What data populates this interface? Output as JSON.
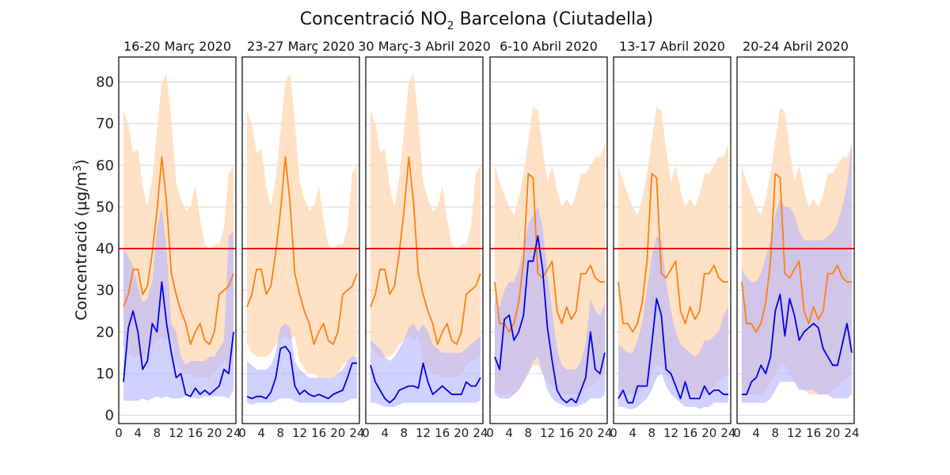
{
  "chart_data": {
    "type": "line",
    "title": "Concentració NO₂ Barcelona (Ciutadella)",
    "title_parts": {
      "pre": "Concentració NO",
      "sub": "2",
      "post": " Barcelona (Ciutadella)"
    },
    "ylabel_parts": {
      "pre": "Concentració (µg/m",
      "sup": "3",
      "post": ")"
    },
    "xticks": [
      0,
      4,
      8,
      12,
      16,
      20,
      24
    ],
    "yticks": [
      0,
      10,
      20,
      30,
      40,
      50,
      60,
      70,
      80
    ],
    "xlim": [
      0,
      24.5
    ],
    "ylim": [
      -2,
      86
    ],
    "grid": "horizontal",
    "threshold": {
      "value": 40,
      "color": "#e00000"
    },
    "colors": {
      "reference": "#ff7f0e",
      "reference_band": "#ffdcbc",
      "current": "#0000e6",
      "current_band": "#b3b3ff"
    },
    "x": [
      1,
      2,
      3,
      4,
      5,
      6,
      7,
      8,
      9,
      10,
      11,
      12,
      13,
      14,
      15,
      16,
      17,
      18,
      19,
      20,
      21,
      22,
      23,
      24
    ],
    "panels": [
      {
        "title": "16-20 Març 2020",
        "orange": [
          26,
          29,
          35,
          35,
          29,
          31,
          39,
          49,
          62,
          51,
          34,
          29,
          25,
          22,
          17,
          20,
          22,
          18,
          17,
          20,
          29,
          30,
          31,
          34
        ],
        "orange_lo": [
          17,
          15,
          14,
          14,
          14,
          15,
          17,
          18,
          19,
          18,
          19,
          13,
          11,
          10,
          10,
          9,
          9,
          9,
          9,
          10,
          12,
          13,
          13,
          15
        ],
        "orange_hi": [
          73,
          70,
          63,
          64,
          55,
          50,
          57,
          68,
          80,
          82,
          71,
          56,
          52,
          49,
          50,
          55,
          47,
          41,
          40,
          41,
          41,
          45,
          58,
          60
        ],
        "blue": [
          8,
          21,
          25,
          20,
          11,
          13,
          22,
          20,
          32,
          22,
          15,
          9,
          10,
          5,
          4.5,
          6.5,
          5,
          6,
          5,
          6,
          7,
          11,
          10,
          20
        ],
        "blue_lo": [
          3.5,
          3.5,
          3.5,
          3.5,
          4,
          3.5,
          4,
          4.5,
          4,
          4.5,
          4,
          4,
          4,
          4.5,
          4.5,
          4,
          4,
          4.5,
          4.5,
          4.5,
          4.5,
          4.5,
          4,
          6
        ],
        "blue_hi": [
          40,
          38,
          36,
          31,
          27,
          28,
          32,
          45,
          50,
          40,
          22,
          20,
          14,
          12,
          13,
          13,
          13,
          13,
          14,
          14,
          16,
          18,
          43,
          44
        ]
      },
      {
        "title": "23-27 Març 2020",
        "orange": [
          26,
          29,
          35,
          35,
          29,
          31,
          39,
          49,
          62,
          51,
          34,
          29,
          25,
          22,
          17,
          20,
          22,
          18,
          17,
          20,
          29,
          30,
          31,
          34
        ],
        "orange_lo": [
          17,
          15,
          14,
          14,
          14,
          15,
          17,
          18,
          19,
          18,
          19,
          13,
          11,
          10,
          10,
          9,
          9,
          9,
          9,
          10,
          12,
          13,
          13,
          15
        ],
        "orange_hi": [
          73,
          70,
          63,
          64,
          55,
          50,
          57,
          68,
          80,
          82,
          71,
          56,
          52,
          49,
          50,
          55,
          47,
          41,
          40,
          41,
          41,
          45,
          58,
          60
        ],
        "blue": [
          4.5,
          4,
          4.5,
          4.5,
          4,
          5.5,
          9,
          16,
          16.5,
          15,
          7,
          5,
          6,
          5,
          4.5,
          5,
          4.5,
          4,
          5,
          5.5,
          6,
          9,
          12.5,
          12.5
        ],
        "blue_lo": [
          3,
          2.5,
          3,
          3,
          3,
          3,
          3.5,
          4,
          4,
          4,
          3.5,
          3,
          3,
          3,
          3,
          3,
          3,
          3,
          3,
          3,
          3,
          3.5,
          4,
          4
        ],
        "blue_hi": [
          13,
          12,
          11,
          11,
          11,
          12,
          15,
          21,
          22,
          21,
          13,
          11,
          10,
          9,
          9,
          9,
          9,
          9,
          9,
          10,
          11,
          13,
          14,
          14
        ]
      },
      {
        "title": "30 Març-3 Abril 2020",
        "orange": [
          26,
          29,
          35,
          35,
          29,
          31,
          39,
          49,
          62,
          51,
          34,
          29,
          25,
          22,
          17,
          20,
          22,
          18,
          17,
          20,
          29,
          30,
          31,
          34
        ],
        "orange_lo": [
          17,
          15,
          14,
          14,
          14,
          15,
          17,
          18,
          19,
          18,
          19,
          13,
          11,
          10,
          10,
          9,
          9,
          9,
          9,
          10,
          12,
          13,
          13,
          15
        ],
        "orange_hi": [
          73,
          70,
          63,
          64,
          55,
          50,
          57,
          68,
          80,
          82,
          71,
          56,
          52,
          49,
          50,
          55,
          47,
          41,
          40,
          41,
          41,
          45,
          58,
          60
        ],
        "blue": [
          12,
          8,
          6,
          4,
          3,
          4,
          6,
          6.5,
          7,
          7,
          6.5,
          12.5,
          8,
          5,
          6,
          7,
          6,
          5,
          5,
          5,
          8,
          7,
          7,
          9
        ],
        "blue_lo": [
          3,
          3,
          2.5,
          2,
          2,
          2,
          2.5,
          3,
          3,
          3,
          3,
          3,
          3,
          3,
          3,
          3,
          3,
          3,
          3,
          3,
          3,
          3,
          3,
          3.5
        ],
        "blue_hi": [
          18,
          17,
          16,
          14,
          13,
          14,
          16,
          18,
          21,
          22,
          20,
          22,
          20,
          17,
          16,
          15,
          15,
          15,
          15,
          15,
          16,
          17,
          18,
          19
        ]
      },
      {
        "title": "6-10 Abril 2020",
        "orange": [
          32,
          22,
          22,
          20,
          22,
          27,
          37,
          58,
          57,
          34,
          33,
          35,
          37,
          25,
          22,
          26,
          23,
          25,
          34,
          34,
          36,
          33,
          32,
          32
        ],
        "orange_lo": [
          6,
          5,
          5,
          5,
          5,
          6,
          8,
          10,
          12,
          12,
          10,
          8,
          7,
          6,
          5,
          5,
          5,
          5,
          5,
          6,
          7,
          8,
          9,
          10
        ],
        "orange_hi": [
          60,
          56,
          53,
          50,
          48,
          52,
          58,
          66,
          74,
          73,
          64,
          56,
          60,
          54,
          50,
          52,
          50,
          53,
          58,
          58,
          60,
          62,
          62,
          65
        ],
        "blue": [
          14,
          11,
          23,
          24,
          18,
          20,
          24,
          37,
          37,
          43,
          35,
          21,
          13,
          6,
          4,
          3,
          4,
          3,
          6,
          9,
          20,
          11,
          10,
          15
        ],
        "blue_lo": [
          5,
          4,
          4,
          4,
          5,
          6,
          8,
          10,
          13,
          14,
          10,
          6,
          4,
          3,
          2.5,
          2,
          2,
          2,
          2.5,
          3,
          4,
          4,
          4,
          5
        ],
        "blue_hi": [
          28,
          26,
          30,
          32,
          32,
          35,
          40,
          46,
          48,
          50,
          45,
          34,
          25,
          16,
          12,
          11,
          11,
          11,
          13,
          17,
          28,
          25,
          24,
          27
        ]
      },
      {
        "title": "13-17 Abril 2020",
        "orange": [
          32,
          22,
          22,
          20,
          22,
          27,
          37,
          58,
          57,
          34,
          33,
          35,
          37,
          25,
          22,
          26,
          23,
          25,
          34,
          34,
          36,
          33,
          32,
          32
        ],
        "orange_lo": [
          6,
          5,
          5,
          5,
          5,
          6,
          8,
          10,
          12,
          12,
          10,
          8,
          7,
          6,
          5,
          5,
          5,
          5,
          5,
          6,
          7,
          8,
          9,
          10
        ],
        "orange_hi": [
          60,
          56,
          53,
          50,
          48,
          52,
          58,
          66,
          74,
          73,
          64,
          56,
          60,
          54,
          50,
          52,
          50,
          53,
          58,
          58,
          60,
          62,
          62,
          65
        ],
        "blue": [
          4,
          6,
          3,
          3,
          7,
          7,
          7,
          17,
          28,
          24,
          11,
          10,
          7,
          4,
          8,
          4,
          4,
          4,
          7,
          5,
          6,
          6,
          5,
          5
        ],
        "blue_lo": [
          2,
          2,
          1.5,
          1.5,
          2,
          3,
          4,
          6,
          9,
          10,
          7,
          5,
          4,
          3,
          2,
          2,
          2,
          1.5,
          2,
          2,
          3,
          3,
          3,
          3
        ],
        "blue_hi": [
          17,
          16,
          15,
          15,
          18,
          22,
          30,
          38,
          43,
          42,
          32,
          25,
          20,
          17,
          16,
          15,
          14,
          15,
          18,
          18,
          19,
          20,
          24,
          26
        ]
      },
      {
        "title": "20-24 Abril 2020",
        "orange": [
          32,
          22,
          22,
          20,
          22,
          27,
          37,
          58,
          57,
          34,
          33,
          35,
          37,
          25,
          22,
          26,
          23,
          25,
          34,
          34,
          36,
          33,
          32,
          32
        ],
        "orange_lo": [
          6,
          5,
          5,
          5,
          5,
          6,
          8,
          10,
          12,
          12,
          10,
          8,
          7,
          6,
          5,
          5,
          5,
          5,
          5,
          6,
          7,
          8,
          9,
          10
        ],
        "orange_hi": [
          60,
          56,
          53,
          50,
          48,
          52,
          58,
          66,
          74,
          73,
          64,
          56,
          60,
          54,
          50,
          52,
          50,
          53,
          58,
          58,
          60,
          62,
          62,
          65
        ],
        "blue": [
          5,
          5,
          8,
          9,
          12,
          10,
          14,
          25,
          29,
          19,
          28,
          24,
          18,
          20,
          21,
          22,
          21,
          16,
          14,
          12,
          12,
          17,
          22,
          15
        ],
        "blue_lo": [
          3,
          3,
          3,
          3,
          3,
          3,
          4,
          6,
          8,
          8,
          8,
          8,
          6,
          6,
          6,
          6,
          5,
          5,
          5,
          4,
          4,
          4,
          4,
          5
        ],
        "blue_hi": [
          35,
          33,
          32,
          32,
          34,
          38,
          42,
          48,
          52,
          50,
          50,
          48,
          44,
          42,
          42,
          42,
          42,
          42,
          43,
          44,
          46,
          50,
          55,
          66
        ]
      }
    ]
  }
}
